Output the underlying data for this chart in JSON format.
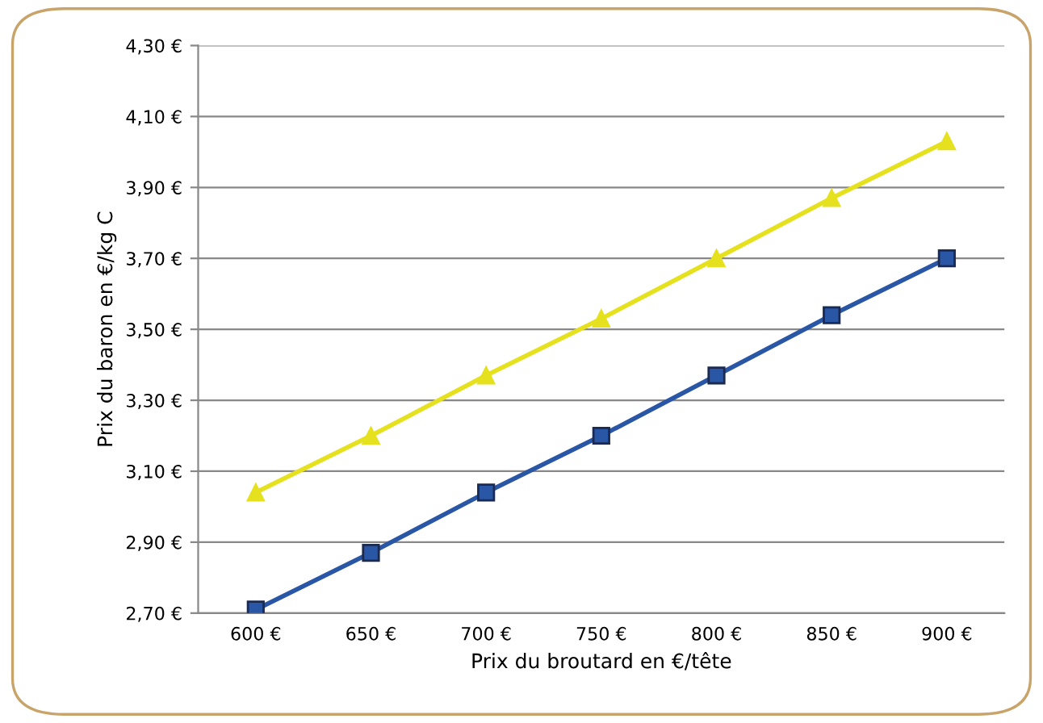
{
  "chart_data": {
    "type": "line",
    "xlabel": "Prix du broutard en €/tête",
    "ylabel": "Prix du baron en €/kg C",
    "categories": [
      "600 €",
      "650 €",
      "700 €",
      "750 €",
      "800 €",
      "850 €",
      "900 €"
    ],
    "series": [
      {
        "color": "#2a56a6",
        "marker": "square",
        "values": [
          2.71,
          2.87,
          3.04,
          3.2,
          3.37,
          3.54,
          3.7
        ]
      },
      {
        "color": "#e6e11e",
        "marker": "triangle",
        "values": [
          3.04,
          3.2,
          3.37,
          3.53,
          3.7,
          3.87,
          4.03
        ]
      }
    ],
    "ylim": [
      2.7,
      4.3
    ],
    "yticks": [
      {
        "value": 2.7,
        "label": "2,70 €"
      },
      {
        "value": 2.9,
        "label": "2,90 €"
      },
      {
        "value": 3.1,
        "label": "3,10 €"
      },
      {
        "value": 3.3,
        "label": "3,30 €"
      },
      {
        "value": 3.5,
        "label": "3,50 €"
      },
      {
        "value": 3.7,
        "label": "3,70 €"
      },
      {
        "value": 3.9,
        "label": "3,90 €"
      },
      {
        "value": 4.1,
        "label": "4,10 €"
      },
      {
        "value": 4.3,
        "label": "4,30 €"
      }
    ],
    "grid": "y",
    "line_style": "solid"
  }
}
